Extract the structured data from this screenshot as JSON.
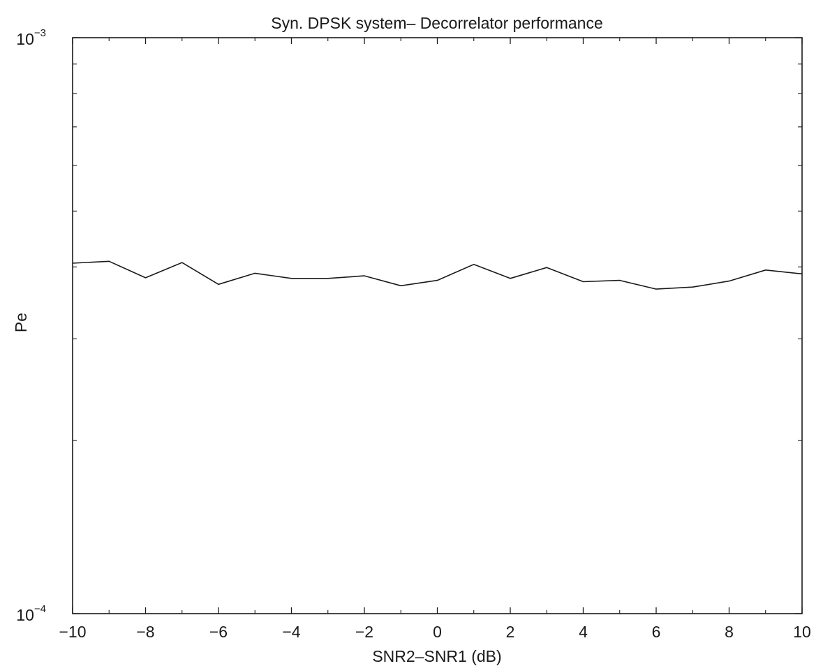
{
  "chart_data": {
    "type": "line",
    "title": "Syn. DPSK system– Decorrelator performance",
    "xlabel": "SNR2–SNR1 (dB)",
    "ylabel": "Pe",
    "xlim": [
      -10,
      10
    ],
    "ylim": [
      0.0001,
      0.001
    ],
    "yscale": "log",
    "grid": false,
    "x_ticks": [
      -10,
      -8,
      -6,
      -4,
      -2,
      0,
      2,
      4,
      6,
      8,
      10
    ],
    "x_tick_labels": [
      "−10",
      "−8",
      "−6",
      "−4",
      "−2",
      "0",
      "2",
      "4",
      "6",
      "8",
      "10"
    ],
    "y_ticks": [
      {
        "value": 0.001,
        "base": "10",
        "exponent": "−3"
      },
      {
        "value": 0.0001,
        "base": "10",
        "exponent": "−4"
      }
    ],
    "y_minor_ticks": [
      0.0002,
      0.0003,
      0.0004,
      0.0005,
      0.0006,
      0.0007,
      0.0008,
      0.0009
    ],
    "x_minor_ticks": [
      -9,
      -7,
      -5,
      -3,
      -1,
      1,
      3,
      5,
      7,
      9
    ],
    "series": [
      {
        "x": [
          -10,
          -9,
          -8,
          -7,
          -6,
          -5,
          -4,
          -3,
          -2,
          -1,
          0,
          1,
          2,
          3,
          4,
          5,
          6,
          7,
          8,
          9,
          10
        ],
        "values": [
          0.000406,
          0.000409,
          0.000383,
          0.000407,
          0.000373,
          0.00039,
          0.000382,
          0.000382,
          0.000386,
          0.000371,
          0.000379,
          0.000404,
          0.000382,
          0.000399,
          0.000377,
          0.000379,
          0.000366,
          0.000369,
          0.000378,
          0.000395,
          0.000389
        ],
        "color": "#1a1a1a"
      }
    ]
  }
}
